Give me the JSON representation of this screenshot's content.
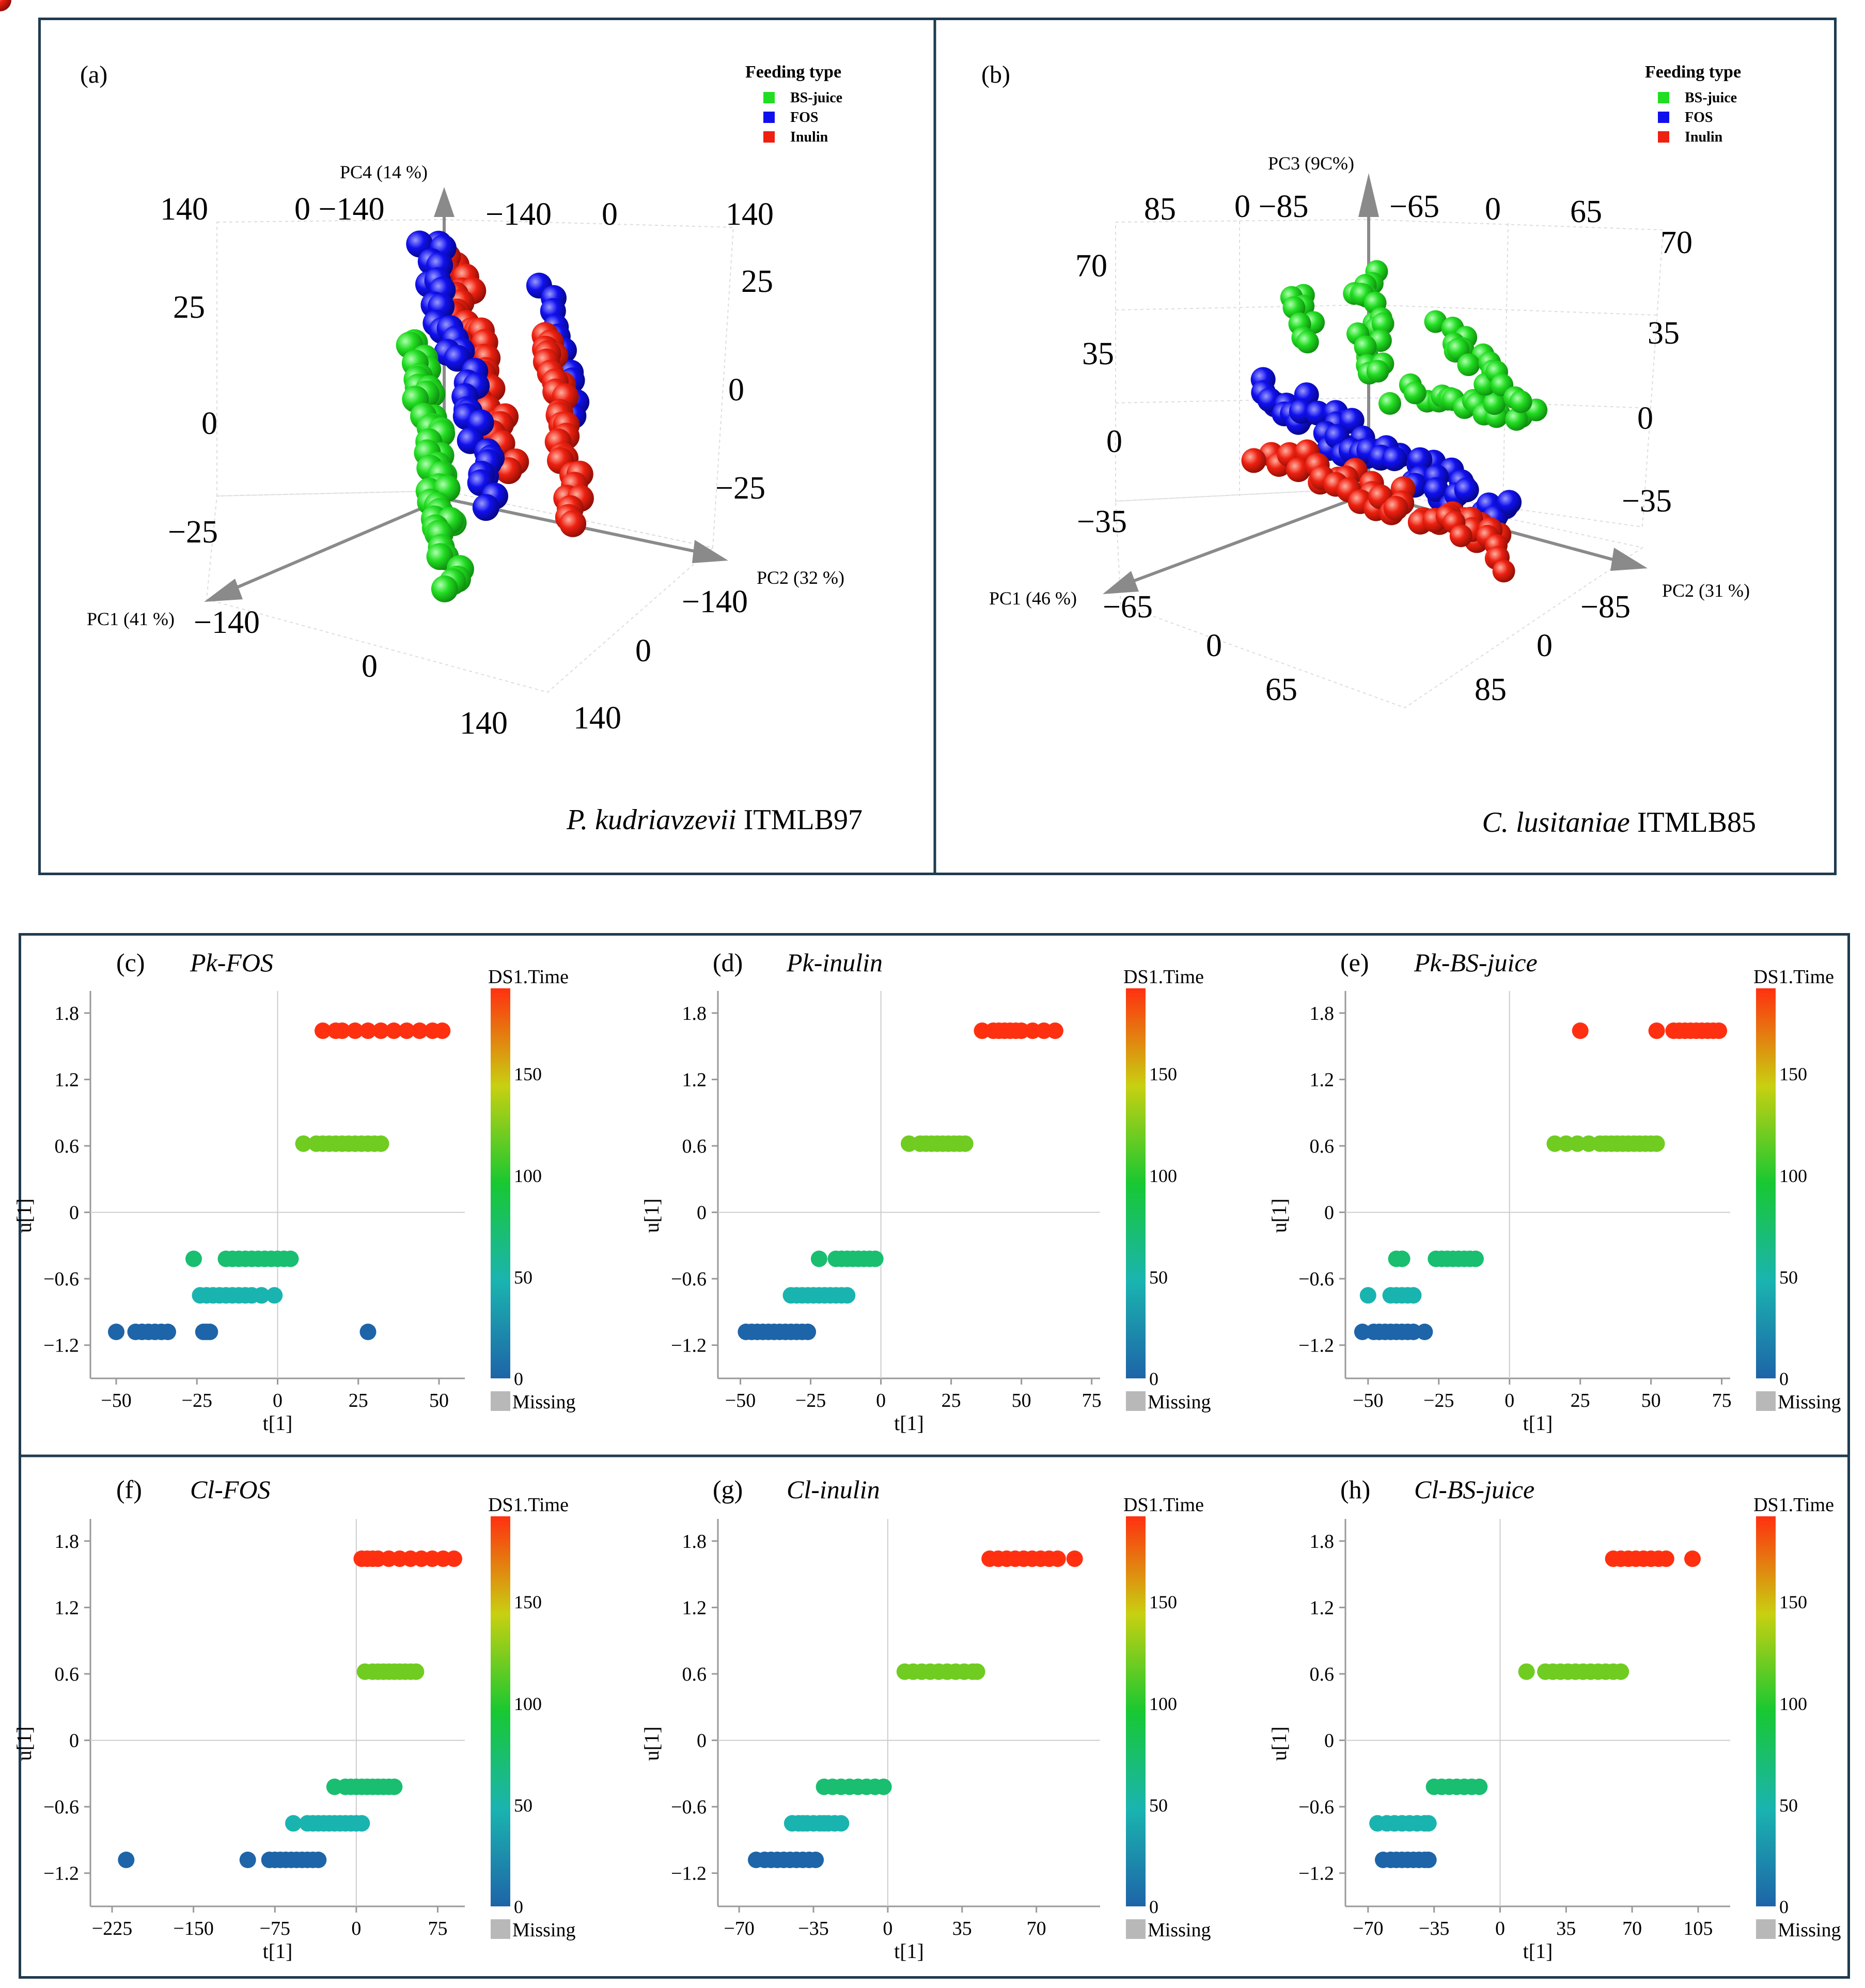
{
  "colors": {
    "frame": "#1f3b4f",
    "green": "#22dd22",
    "blue": "#1010ee",
    "red": "#ee2010",
    "axis": "#999999",
    "grid": "#cccccc",
    "missing": "#b8b8b8"
  },
  "chart_data": [
    {
      "id": "a",
      "type": "scatter3d",
      "panel_label": "(a)",
      "subtitle_italic": "P. kudriavzevii",
      "subtitle_strain": " ITMLB97",
      "legend": {
        "title": "Feeding type",
        "entries": [
          "BS-juice",
          "FOS",
          "Inulin"
        ]
      },
      "axes": {
        "x": "PC1 (41 %)",
        "y": "PC2 (32 %)",
        "z": "PC4 (14 %)"
      },
      "tick_labels": {
        "x": [
          "−140",
          "0",
          "140"
        ],
        "y": [
          "−140",
          "0",
          "140"
        ],
        "z_left": [
          "140",
          "25",
          "0",
          "−25"
        ],
        "z_right": [
          "140",
          "25",
          "0",
          "−25"
        ],
        "back_top": [
          "0 −140",
          "−140",
          "0"
        ]
      },
      "clusters": [
        {
          "series": "BS-juice",
          "note": "column of points along PC4"
        },
        {
          "series": "FOS",
          "note": "mixed column with Inulin"
        },
        {
          "series": "Inulin",
          "note": "two columns"
        }
      ]
    },
    {
      "id": "b",
      "type": "scatter3d",
      "panel_label": "(b)",
      "subtitle_italic": "C. lusitaniae",
      "subtitle_strain": " ITMLB85",
      "legend": {
        "title": "Feeding type",
        "entries": [
          "BS-juice",
          "FOS",
          "Inulin"
        ]
      },
      "axes": {
        "x": "PC1 (46 %)",
        "y": "PC2 (31 %)",
        "z": "PC3 (9C%)"
      },
      "tick_labels": {
        "x": [
          "−65",
          "0",
          "65"
        ],
        "y": [
          "−85",
          "0",
          "85"
        ],
        "z_left": [
          "70",
          "35",
          "0",
          "−35"
        ],
        "z_right": [
          "70",
          "35",
          "0",
          "−35"
        ],
        "back_top": [
          "85",
          "0 −85",
          "−65",
          "0",
          "65"
        ]
      }
    },
    {
      "id": "c",
      "type": "scatter",
      "panel_label": "(c)",
      "title": "Pk-FOS",
      "xlabel": "t[1]",
      "ylabel": "u[1]",
      "xlim": [
        -58,
        58
      ],
      "ylim": [
        -1.5,
        2.0
      ],
      "xticks": [
        -50,
        -25,
        0,
        25,
        50
      ],
      "yticks": [
        -1.2,
        -0.6,
        0,
        0.6,
        1.2,
        1.8
      ],
      "colorbar": {
        "title": "DS1.Time",
        "ticks": [
          0,
          50,
          100,
          150
        ],
        "max": 192,
        "missing_label": "Missing"
      },
      "groups": [
        {
          "u": -1.08,
          "time": 0,
          "t": [
            -50,
            -44,
            -42,
            -40,
            -38,
            -36,
            -34,
            -23,
            -22,
            -21,
            28
          ]
        },
        {
          "u": -0.75,
          "time": 48,
          "t": [
            -24,
            -22,
            -20,
            -18,
            -16,
            -14,
            -12,
            -10,
            -8,
            -5,
            -1,
            -5
          ]
        },
        {
          "u": -0.42,
          "time": 72,
          "t": [
            -26,
            -16,
            -14,
            -12,
            -10,
            -8,
            -6,
            -4,
            -2,
            0,
            2,
            4
          ]
        },
        {
          "u": 0.62,
          "time": 120,
          "t": [
            8,
            12,
            14,
            16,
            18,
            20,
            22,
            24,
            26,
            28,
            30,
            32
          ]
        },
        {
          "u": 1.64,
          "time": 192,
          "t": [
            14,
            18,
            20,
            24,
            28,
            32,
            36,
            40,
            44,
            48,
            51
          ]
        }
      ]
    },
    {
      "id": "d",
      "type": "scatter",
      "panel_label": "(d)",
      "title": "Pk-inulin",
      "xlabel": "t[1]",
      "ylabel": "u[1]",
      "xlim": [
        -58,
        78
      ],
      "ylim": [
        -1.5,
        2.0
      ],
      "xticks": [
        -50,
        -25,
        0,
        25,
        50,
        75
      ],
      "yticks": [
        -1.2,
        -0.6,
        0,
        0.6,
        1.2,
        1.8
      ],
      "colorbar": {
        "title": "DS1.Time",
        "ticks": [
          0,
          50,
          100,
          150
        ],
        "max": 192,
        "missing_label": "Missing"
      },
      "groups": [
        {
          "u": -1.08,
          "time": 0,
          "t": [
            -48,
            -46,
            -44,
            -42,
            -40,
            -38,
            -36,
            -34,
            -32,
            -30,
            -28,
            -26
          ]
        },
        {
          "u": -0.75,
          "time": 48,
          "t": [
            -32,
            -30,
            -28,
            -26,
            -24,
            -22,
            -20,
            -18,
            -16,
            -14,
            -12
          ]
        },
        {
          "u": -0.42,
          "time": 72,
          "t": [
            -22,
            -16,
            -14,
            -12,
            -10,
            -8,
            -6,
            -4,
            -2
          ]
        },
        {
          "u": 0.62,
          "time": 120,
          "t": [
            10,
            14,
            16,
            18,
            20,
            22,
            24,
            26,
            28,
            30
          ]
        },
        {
          "u": 1.64,
          "time": 192,
          "t": [
            36,
            40,
            42,
            44,
            46,
            48,
            50,
            54,
            58,
            62
          ]
        }
      ]
    },
    {
      "id": "e",
      "type": "scatter",
      "panel_label": "(e)",
      "title": "Pk-BS-juice",
      "xlabel": "t[1]",
      "ylabel": "u[1]",
      "xlim": [
        -58,
        78
      ],
      "ylim": [
        -1.5,
        2.0
      ],
      "xticks": [
        -50,
        -25,
        0,
        25,
        50,
        75
      ],
      "yticks": [
        -1.2,
        -0.6,
        0,
        0.6,
        1.2,
        1.8
      ],
      "colorbar": {
        "title": "DS1.Time",
        "ticks": [
          0,
          50,
          100,
          150
        ],
        "max": 192,
        "missing_label": "Missing"
      },
      "groups": [
        {
          "u": -1.08,
          "time": 0,
          "t": [
            -52,
            -48,
            -46,
            -44,
            -42,
            -40,
            -38,
            -36,
            -34,
            -30
          ]
        },
        {
          "u": -0.75,
          "time": 48,
          "t": [
            -50,
            -42,
            -40,
            -38,
            -36,
            -34
          ]
        },
        {
          "u": -0.42,
          "time": 72,
          "t": [
            -40,
            -38,
            -26,
            -24,
            -22,
            -20,
            -18,
            -16,
            -14,
            -12
          ]
        },
        {
          "u": 0.62,
          "time": 120,
          "t": [
            16,
            20,
            24,
            28,
            32,
            34,
            36,
            38,
            40,
            42,
            44,
            46,
            48,
            50,
            52
          ]
        },
        {
          "u": 1.64,
          "time": 192,
          "t": [
            25,
            52,
            58,
            60,
            62,
            64,
            66,
            68,
            70,
            72,
            74
          ]
        }
      ]
    },
    {
      "id": "f",
      "type": "scatter",
      "panel_label": "(f)",
      "title": "Cl-FOS",
      "xlabel": "t[1]",
      "ylabel": "u[1]",
      "xlim": [
        -245,
        100
      ],
      "ylim": [
        -1.5,
        2.0
      ],
      "xticks": [
        -225,
        -150,
        -75,
        0,
        75
      ],
      "yticks": [
        -1.2,
        -0.6,
        0,
        0.6,
        1.2,
        1.8
      ],
      "colorbar": {
        "title": "DS1.Time",
        "ticks": [
          0,
          50,
          100,
          150
        ],
        "max": 192,
        "missing_label": "Missing"
      },
      "groups": [
        {
          "u": -1.08,
          "time": 0,
          "t": [
            -212,
            -100,
            -80,
            -75,
            -70,
            -65,
            -60,
            -55,
            -50,
            -45,
            -40,
            -35
          ]
        },
        {
          "u": -0.75,
          "time": 48,
          "t": [
            -58,
            -45,
            -40,
            -35,
            -30,
            -25,
            -20,
            -15,
            -10,
            -5,
            0,
            5
          ]
        },
        {
          "u": -0.42,
          "time": 72,
          "t": [
            -20,
            -10,
            -5,
            0,
            5,
            10,
            15,
            20,
            25,
            30,
            35
          ]
        },
        {
          "u": 0.62,
          "time": 120,
          "t": [
            8,
            15,
            20,
            25,
            30,
            35,
            40,
            45,
            50,
            55
          ]
        },
        {
          "u": 1.64,
          "time": 192,
          "t": [
            5,
            10,
            15,
            20,
            30,
            40,
            50,
            60,
            70,
            80,
            90
          ]
        }
      ]
    },
    {
      "id": "g",
      "type": "scatter",
      "panel_label": "(g)",
      "title": "Cl-inulin",
      "xlabel": "t[1]",
      "ylabel": "u[1]",
      "xlim": [
        -80,
        100
      ],
      "ylim": [
        -1.5,
        2.0
      ],
      "xticks": [
        -70,
        -35,
        0,
        35,
        70
      ],
      "yticks": [
        -1.2,
        -0.6,
        0,
        0.6,
        1.2,
        1.8
      ],
      "colorbar": {
        "title": "DS1.Time",
        "ticks": [
          0,
          50,
          100,
          150
        ],
        "max": 192,
        "missing_label": "Missing"
      },
      "groups": [
        {
          "u": -1.08,
          "time": 0,
          "t": [
            -62,
            -58,
            -55,
            -52,
            -49,
            -46,
            -43,
            -40,
            -37,
            -34
          ]
        },
        {
          "u": -0.75,
          "time": 48,
          "t": [
            -45,
            -42,
            -40,
            -38,
            -35,
            -32,
            -30,
            -28,
            -25,
            -22
          ]
        },
        {
          "u": -0.42,
          "time": 72,
          "t": [
            -30,
            -26,
            -22,
            -18,
            -14,
            -10,
            -6,
            -2
          ]
        },
        {
          "u": 0.62,
          "time": 120,
          "t": [
            8,
            12,
            16,
            20,
            24,
            28,
            32,
            36,
            40,
            42
          ]
        },
        {
          "u": 1.64,
          "time": 192,
          "t": [
            48,
            52,
            56,
            60,
            64,
            68,
            72,
            76,
            80,
            88
          ]
        }
      ]
    },
    {
      "id": "h",
      "type": "scatter",
      "panel_label": "(h)",
      "title": "Cl-BS-juice",
      "xlabel": "t[1]",
      "ylabel": "u[1]",
      "xlim": [
        -82,
        122
      ],
      "ylim": [
        -1.5,
        2.0
      ],
      "xticks": [
        -70,
        -35,
        0,
        35,
        70,
        105
      ],
      "yticks": [
        -1.2,
        -0.6,
        0,
        0.6,
        1.2,
        1.8
      ],
      "colorbar": {
        "title": "DS1.Time",
        "ticks": [
          0,
          50,
          100,
          150
        ],
        "max": 192,
        "missing_label": "Missing"
      },
      "groups": [
        {
          "u": -1.08,
          "time": 0,
          "t": [
            -62,
            -58,
            -55,
            -52,
            -49,
            -46,
            -43,
            -40,
            -38
          ]
        },
        {
          "u": -0.75,
          "time": 48,
          "t": [
            -65,
            -60,
            -56,
            -52,
            -48,
            -44,
            -40,
            -38
          ]
        },
        {
          "u": -0.42,
          "time": 72,
          "t": [
            -35,
            -31,
            -27,
            -23,
            -19,
            -15,
            -11
          ]
        },
        {
          "u": 0.62,
          "time": 120,
          "t": [
            14,
            24,
            28,
            32,
            36,
            40,
            44,
            48,
            52,
            56,
            60,
            64
          ]
        },
        {
          "u": 1.64,
          "time": 192,
          "t": [
            60,
            64,
            68,
            72,
            76,
            80,
            84,
            88,
            102
          ]
        }
      ]
    }
  ]
}
